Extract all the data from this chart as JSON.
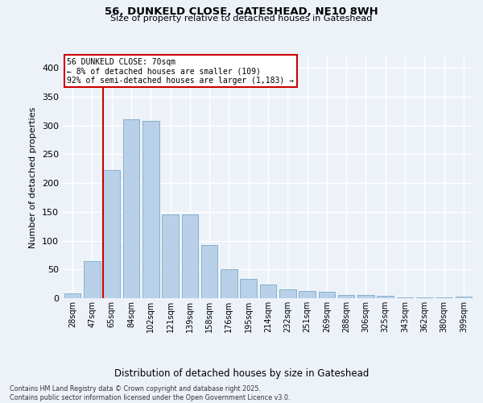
{
  "title1": "56, DUNKELD CLOSE, GATESHEAD, NE10 8WH",
  "title2": "Size of property relative to detached houses in Gateshead",
  "xlabel": "Distribution of detached houses by size in Gateshead",
  "ylabel": "Number of detached properties",
  "categories": [
    "28sqm",
    "47sqm",
    "65sqm",
    "84sqm",
    "102sqm",
    "121sqm",
    "139sqm",
    "158sqm",
    "176sqm",
    "195sqm",
    "214sqm",
    "232sqm",
    "251sqm",
    "269sqm",
    "288sqm",
    "306sqm",
    "325sqm",
    "343sqm",
    "362sqm",
    "380sqm",
    "399sqm"
  ],
  "values": [
    8,
    65,
    222,
    311,
    308,
    145,
    145,
    93,
    50,
    33,
    24,
    16,
    13,
    11,
    5,
    5,
    4,
    2,
    2,
    1,
    3
  ],
  "bar_color": "#b8d0e8",
  "bar_edge_color": "#7aaac8",
  "annotation_text": "56 DUNKELD CLOSE: 70sqm\n← 8% of detached houses are smaller (109)\n92% of semi-detached houses are larger (1,183) →",
  "annotation_box_facecolor": "#ffffff",
  "annotation_box_edgecolor": "#cc0000",
  "vline_color": "#cc0000",
  "vline_x": 1.575,
  "ylim": [
    0,
    420
  ],
  "yticks": [
    0,
    50,
    100,
    150,
    200,
    250,
    300,
    350,
    400
  ],
  "footer": "Contains HM Land Registry data © Crown copyright and database right 2025.\nContains public sector information licensed under the Open Government Licence v3.0.",
  "bg_color": "#edf2f9",
  "grid_color": "#ffffff"
}
